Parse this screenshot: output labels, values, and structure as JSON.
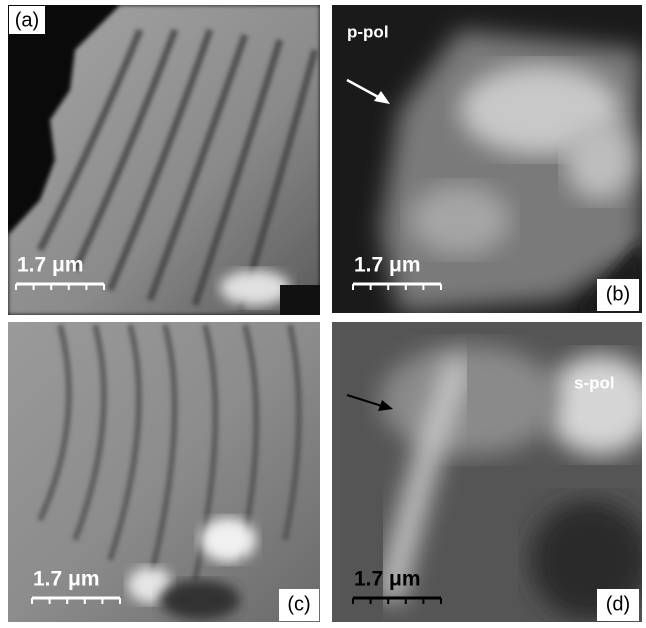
{
  "panels": [
    {
      "label": "(a)",
      "scale_bar": "1.7 μm"
    },
    {
      "label": "(b)",
      "scale_bar": "1.7 μm",
      "annotation": "p-pol"
    },
    {
      "label": "(c)",
      "scale_bar": "1.7 μm"
    },
    {
      "label": "(d)",
      "scale_bar": "1.7 μm",
      "annotation": "s-pol"
    }
  ]
}
